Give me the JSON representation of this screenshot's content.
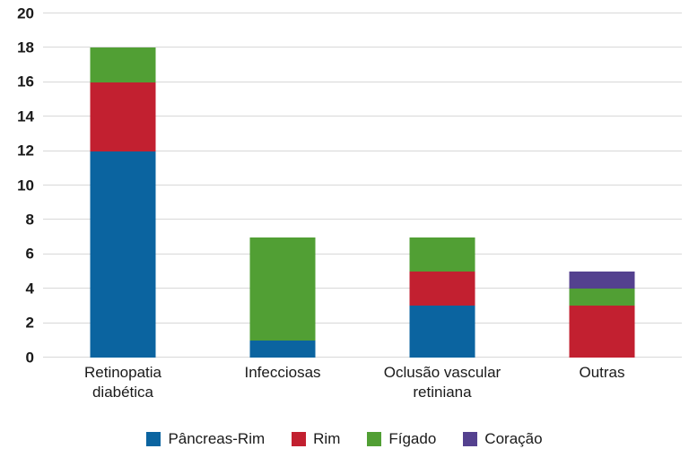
{
  "chart_data": {
    "type": "bar",
    "stacked": true,
    "title": "",
    "xlabel": "",
    "ylabel": "",
    "ylim": [
      0,
      20
    ],
    "yticks": [
      0,
      2,
      4,
      6,
      8,
      10,
      12,
      14,
      16,
      18,
      20
    ],
    "grid": true,
    "legend_position": "bottom",
    "categories": [
      "Retinopatia\ndiabética",
      "Infecciosas",
      "Oclusão vascular\nretiniana",
      "Outras"
    ],
    "series": [
      {
        "name": "Pâncreas-Rim",
        "color": "#0b64a0",
        "values": [
          12,
          1,
          3,
          0
        ]
      },
      {
        "name": "Rim",
        "color": "#c22030",
        "values": [
          4,
          0,
          2,
          3
        ]
      },
      {
        "name": "Fígado",
        "color": "#519f34",
        "values": [
          2,
          6,
          2,
          1
        ]
      },
      {
        "name": "Coração",
        "color": "#54418f",
        "values": [
          0,
          0,
          0,
          1
        ]
      }
    ],
    "totals": {
      "Retinopatia diabética": 18,
      "Infecciosas": 7,
      "Oclusão vascular retiniana": 7,
      "Outras": 5
    },
    "colors": {
      "gridline": "#d8d8d8",
      "text": "#1a1a1a",
      "background": "#ffffff"
    }
  }
}
